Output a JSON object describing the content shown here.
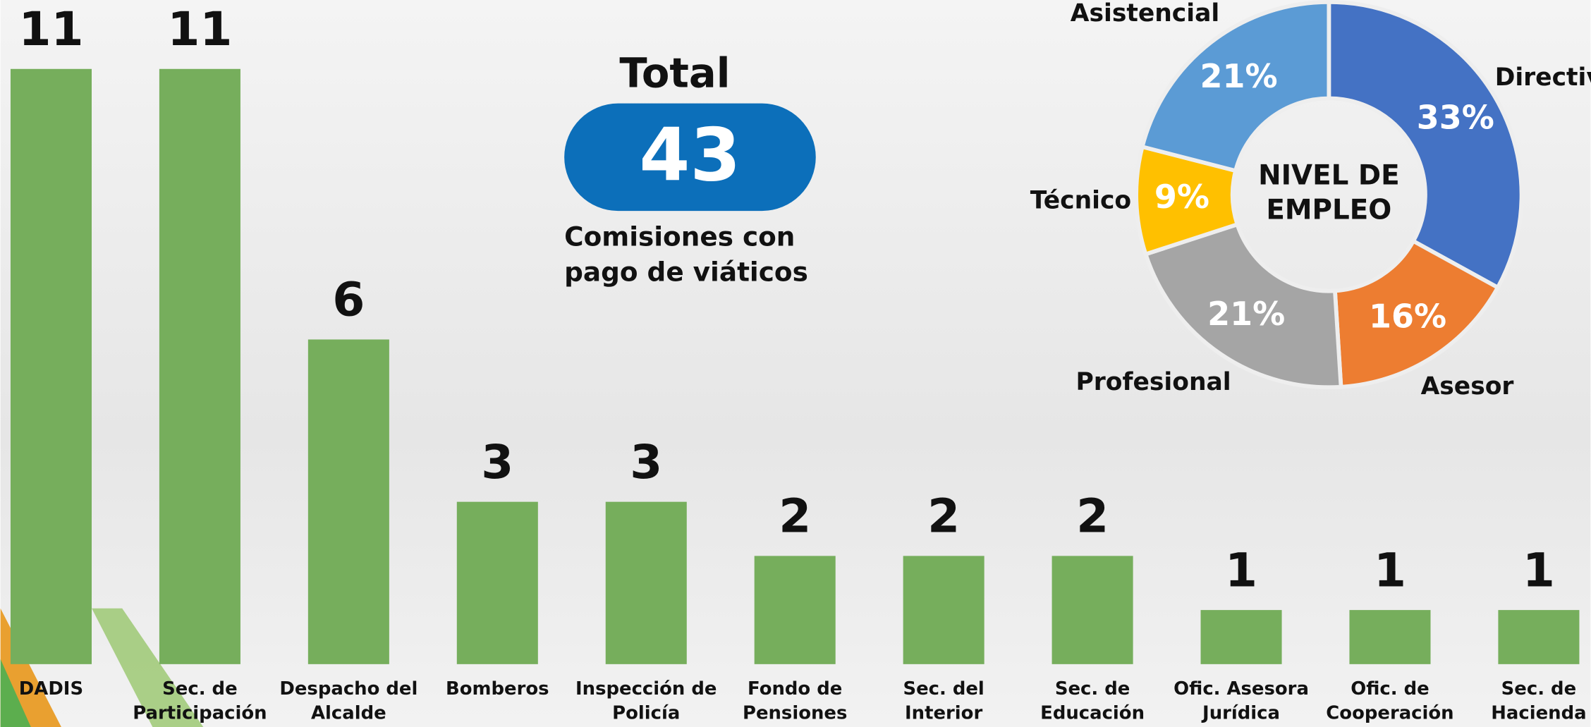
{
  "chart_data": [
    {
      "type": "bar",
      "categories": [
        "DADIS",
        "Sec. de Participación",
        "Despacho del Alcalde",
        "Bomberos",
        "Inspección de Policía",
        "Fondo de Pensiones",
        "Sec. del Interior",
        "Sec. de Educación",
        "Ofic. Asesora Jurídica",
        "Ofic. de Cooperación",
        "Sec. de Hacienda"
      ],
      "values": [
        11,
        11,
        6,
        3,
        3,
        2,
        2,
        2,
        1,
        1,
        1
      ],
      "color": "#76ae5c",
      "ylim": [
        0,
        11
      ]
    },
    {
      "type": "donut",
      "title": "NIVEL DE EMPLEO",
      "categories": [
        "Directivo",
        "Asesor",
        "Profesional",
        "Técnico",
        "Asistencial"
      ],
      "values": [
        33,
        16,
        21,
        9,
        21
      ],
      "value_labels": [
        "33%",
        "16%",
        "21%",
        "9%",
        "21%"
      ],
      "colors": [
        "#4472c4",
        "#ed7d31",
        "#a5a5a5",
        "#ffc000",
        "#5b9bd5"
      ]
    }
  ],
  "summary": {
    "title": "Total",
    "value": 43,
    "caption": [
      "Comisiones con",
      "pago de viáticos"
    ]
  }
}
